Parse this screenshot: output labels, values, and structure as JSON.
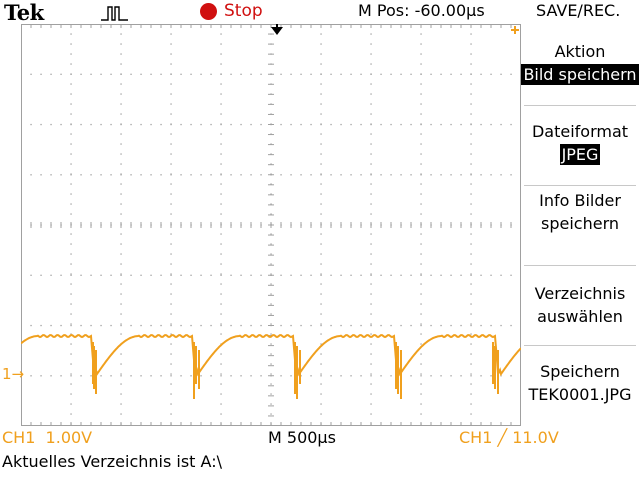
{
  "header": {
    "brand": "Tek",
    "acquisition_state": "Stop",
    "horizontal_position": "M Pos: -60.00µs",
    "menu_title": "SAVE/REC."
  },
  "colors": {
    "channel1": "#f0a01e",
    "stop": "#d01010",
    "grid": "#a0a0a0"
  },
  "markers": {
    "channel1": "1→"
  },
  "side_menu": {
    "items": [
      {
        "label": "Aktion",
        "value": "Bild speichern"
      },
      {
        "label": "Dateiformat",
        "value": "JPEG"
      },
      {
        "label": "Info Bilder speichern"
      },
      {
        "label": "Verzeichnis auswählen"
      },
      {
        "label": "Speichern",
        "value": "TEK0001.JPG"
      }
    ]
  },
  "footer": {
    "ch1_scale": "CH1  1.00V",
    "timebase": "M 500µs",
    "trigger": "CH1 ╱ 11.0V",
    "status_message": "Aktuelles Verzeichnis ist A:\\"
  }
}
